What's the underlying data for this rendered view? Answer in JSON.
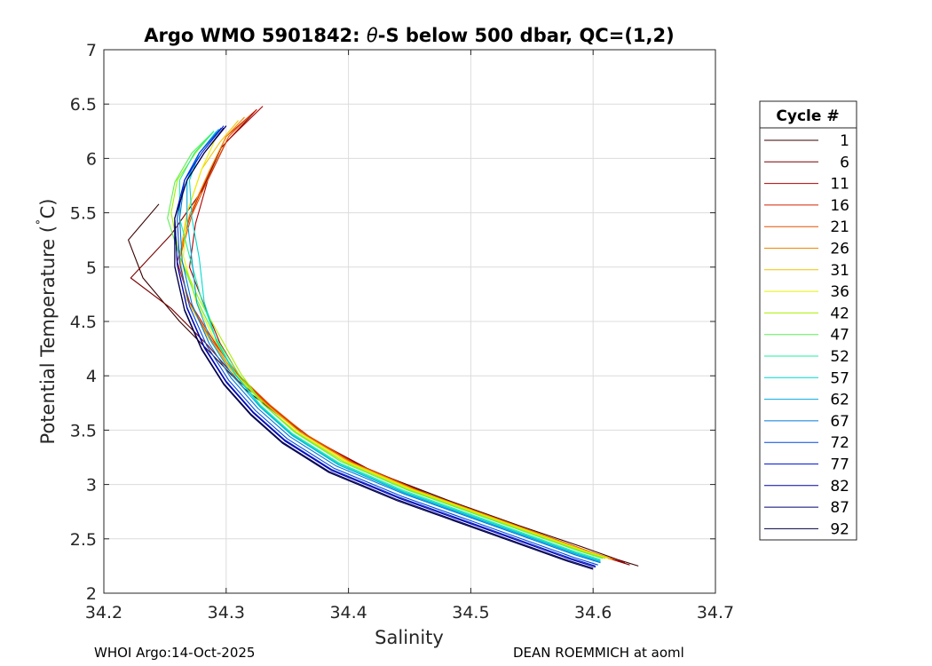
{
  "chart_data": {
    "type": "line",
    "title_prefix": "Argo WMO 5901842: ",
    "title_theta": "θ",
    "title_suffix": "-S below 500 dbar,  QC=(1,2)",
    "xlabel": "Salinity",
    "ylabel_prefix": "Potential Temperature (",
    "ylabel_degree": "˚",
    "ylabel_suffix": "C)",
    "xlim": [
      34.2,
      34.7
    ],
    "ylim": [
      2,
      7
    ],
    "xticks": [
      "34.2",
      "34.3",
      "34.4",
      "34.5",
      "34.6",
      "34.7"
    ],
    "yticks": [
      "2",
      "2.5",
      "3",
      "3.5",
      "4",
      "4.5",
      "5",
      "5.5",
      "6",
      "6.5",
      "7"
    ],
    "grid": true,
    "legend": {
      "title": "Cycle #",
      "placement": "right-outside",
      "entries": [
        {
          "label": "1",
          "color": "#3a0000"
        },
        {
          "label": "6",
          "color": "#7a0000"
        },
        {
          "label": "11",
          "color": "#b00000"
        },
        {
          "label": "16",
          "color": "#d42000"
        },
        {
          "label": "21",
          "color": "#e65000"
        },
        {
          "label": "26",
          "color": "#f08800"
        },
        {
          "label": "31",
          "color": "#f2c400"
        },
        {
          "label": "36",
          "color": "#eaf000"
        },
        {
          "label": "42",
          "color": "#a8f000"
        },
        {
          "label": "47",
          "color": "#5cf050"
        },
        {
          "label": "52",
          "color": "#1ef0a0"
        },
        {
          "label": "57",
          "color": "#00d8d0"
        },
        {
          "label": "62",
          "color": "#00a8e0"
        },
        {
          "label": "67",
          "color": "#0078d8"
        },
        {
          "label": "72",
          "color": "#0048e0"
        },
        {
          "label": "77",
          "color": "#0018d8"
        },
        {
          "label": "82",
          "color": "#0000a8"
        },
        {
          "label": "87",
          "color": "#000070"
        },
        {
          "label": "92",
          "color": "#000040"
        }
      ]
    },
    "profiles": [
      {
        "cycle": 1,
        "color": "#3a0000",
        "s": [
          34.637,
          34.62,
          34.59,
          34.54,
          34.48,
          34.42,
          34.375,
          34.345,
          34.315,
          34.29,
          34.262,
          34.232,
          34.22,
          34.245
        ],
        "t": [
          2.25,
          2.31,
          2.43,
          2.62,
          2.86,
          3.12,
          3.38,
          3.62,
          3.88,
          4.18,
          4.5,
          4.9,
          5.25,
          5.58
        ]
      },
      {
        "cycle": 6,
        "color": "#7a0000",
        "s": [
          34.63,
          34.61,
          34.58,
          34.53,
          34.47,
          34.415,
          34.37,
          34.34,
          34.31,
          34.285,
          34.255,
          34.222,
          34.255,
          34.28,
          34.296,
          34.325
        ],
        "t": [
          2.26,
          2.33,
          2.45,
          2.65,
          2.89,
          3.15,
          3.42,
          3.68,
          3.95,
          4.28,
          4.62,
          4.9,
          5.3,
          5.7,
          6.1,
          6.45
        ]
      },
      {
        "cycle": 11,
        "color": "#b00000",
        "s": [
          34.626,
          34.605,
          34.575,
          34.525,
          34.465,
          34.41,
          34.368,
          34.338,
          34.312,
          34.295,
          34.282,
          34.27,
          34.275,
          34.285,
          34.3,
          34.33
        ],
        "t": [
          2.28,
          2.35,
          2.47,
          2.67,
          2.91,
          3.17,
          3.44,
          3.7,
          3.98,
          4.3,
          4.65,
          5.0,
          5.4,
          5.8,
          6.15,
          6.48
        ]
      },
      {
        "cycle": 16,
        "color": "#d42000",
        "s": [
          34.62,
          34.6,
          34.57,
          34.52,
          34.46,
          34.405,
          34.365,
          34.336,
          34.31,
          34.29,
          34.27,
          34.26,
          34.27,
          34.285,
          34.3,
          34.325
        ],
        "t": [
          2.3,
          2.37,
          2.49,
          2.69,
          2.93,
          3.19,
          3.46,
          3.72,
          4.0,
          4.32,
          4.68,
          5.05,
          5.45,
          5.85,
          6.2,
          6.45
        ]
      },
      {
        "cycle": 21,
        "color": "#e65000",
        "s": [
          34.618,
          34.598,
          34.568,
          34.518,
          34.458,
          34.404,
          34.364,
          34.336,
          34.31,
          34.288,
          34.268,
          34.262,
          34.272,
          34.288,
          34.302,
          34.32
        ],
        "t": [
          2.31,
          2.38,
          2.5,
          2.7,
          2.94,
          3.2,
          3.47,
          3.73,
          4.01,
          4.33,
          4.7,
          5.08,
          5.48,
          5.88,
          6.2,
          6.4
        ]
      },
      {
        "cycle": 26,
        "color": "#f08800",
        "s": [
          34.616,
          34.596,
          34.566,
          34.516,
          34.456,
          34.402,
          34.362,
          34.334,
          34.308,
          34.287,
          34.268,
          34.262,
          34.27,
          34.286,
          34.3,
          34.315
        ],
        "t": [
          2.31,
          2.38,
          2.5,
          2.7,
          2.94,
          3.2,
          3.47,
          3.73,
          4.01,
          4.33,
          4.7,
          5.08,
          5.48,
          5.88,
          6.2,
          6.38
        ]
      },
      {
        "cycle": 31,
        "color": "#f2c400",
        "s": [
          34.614,
          34.594,
          34.564,
          34.514,
          34.454,
          34.4,
          34.36,
          34.332,
          34.306,
          34.286,
          34.268,
          34.262,
          34.268,
          34.28,
          34.295,
          34.31
        ],
        "t": [
          2.32,
          2.39,
          2.51,
          2.71,
          2.95,
          3.21,
          3.48,
          3.74,
          4.02,
          4.34,
          4.7,
          5.1,
          5.5,
          5.9,
          6.15,
          6.35
        ]
      },
      {
        "cycle": 36,
        "color": "#eaf000",
        "s": [
          34.612,
          34.592,
          34.562,
          34.512,
          34.452,
          34.398,
          34.358,
          34.33,
          34.308,
          34.29,
          34.275,
          34.265,
          34.268,
          34.28,
          34.292
        ],
        "t": [
          2.32,
          2.39,
          2.51,
          2.71,
          2.95,
          3.21,
          3.48,
          3.74,
          4.02,
          4.34,
          4.7,
          5.1,
          5.5,
          5.9,
          6.2
        ]
      },
      {
        "cycle": 42,
        "color": "#a8f000",
        "s": [
          34.61,
          34.59,
          34.56,
          34.51,
          34.45,
          34.396,
          34.357,
          34.33,
          34.312,
          34.296,
          34.278,
          34.262,
          34.255,
          34.26,
          34.275,
          34.29
        ],
        "t": [
          2.32,
          2.39,
          2.51,
          2.71,
          2.95,
          3.21,
          3.48,
          3.74,
          4.02,
          4.34,
          4.7,
          5.1,
          5.5,
          5.8,
          6.05,
          6.25
        ]
      },
      {
        "cycle": 47,
        "color": "#5cf050",
        "s": [
          34.608,
          34.588,
          34.558,
          34.508,
          34.448,
          34.394,
          34.356,
          34.33,
          34.31,
          34.292,
          34.276,
          34.262,
          34.252,
          34.258,
          34.272,
          34.29
        ],
        "t": [
          2.32,
          2.39,
          2.51,
          2.71,
          2.95,
          3.21,
          3.48,
          3.74,
          4.02,
          4.34,
          4.7,
          5.1,
          5.45,
          5.78,
          6.05,
          6.25
        ]
      },
      {
        "cycle": 52,
        "color": "#1ef0a0",
        "s": [
          34.606,
          34.586,
          34.556,
          34.506,
          34.446,
          34.392,
          34.354,
          34.328,
          34.308,
          34.292,
          34.28,
          34.27,
          34.262,
          34.262,
          34.274,
          34.29
        ],
        "t": [
          2.31,
          2.38,
          2.5,
          2.7,
          2.94,
          3.2,
          3.47,
          3.73,
          4.01,
          4.33,
          4.7,
          5.1,
          5.45,
          5.8,
          6.05,
          6.25
        ]
      },
      {
        "cycle": 57,
        "color": "#00d8d0",
        "s": [
          34.606,
          34.586,
          34.556,
          34.506,
          34.446,
          34.392,
          34.354,
          34.328,
          34.308,
          34.292,
          34.282,
          34.278,
          34.272,
          34.27,
          34.278,
          34.292
        ],
        "t": [
          2.3,
          2.37,
          2.49,
          2.69,
          2.93,
          3.19,
          3.46,
          3.72,
          4.0,
          4.32,
          4.68,
          5.08,
          5.45,
          5.8,
          6.05,
          6.25
        ]
      },
      {
        "cycle": 62,
        "color": "#00a8e0",
        "s": [
          34.606,
          34.586,
          34.556,
          34.506,
          34.446,
          34.392,
          34.354,
          34.328,
          34.306,
          34.288,
          34.276,
          34.272,
          34.268,
          34.268,
          34.278,
          34.294
        ],
        "t": [
          2.29,
          2.36,
          2.48,
          2.68,
          2.92,
          3.18,
          3.45,
          3.71,
          3.99,
          4.31,
          4.67,
          5.07,
          5.45,
          5.8,
          6.05,
          6.27
        ]
      },
      {
        "cycle": 67,
        "color": "#0078d8",
        "s": [
          34.606,
          34.586,
          34.556,
          34.506,
          34.446,
          34.39,
          34.352,
          34.326,
          34.304,
          34.286,
          34.272,
          34.264,
          34.262,
          34.266,
          34.278,
          34.296
        ],
        "t": [
          2.28,
          2.35,
          2.47,
          2.67,
          2.91,
          3.17,
          3.44,
          3.7,
          3.98,
          4.3,
          4.66,
          5.06,
          5.45,
          5.8,
          6.05,
          6.28
        ]
      },
      {
        "cycle": 72,
        "color": "#0048e0",
        "s": [
          34.604,
          34.584,
          34.554,
          34.504,
          34.444,
          34.388,
          34.35,
          34.324,
          34.302,
          34.284,
          34.27,
          34.262,
          34.26,
          34.266,
          34.278,
          34.296
        ],
        "t": [
          2.26,
          2.33,
          2.45,
          2.65,
          2.89,
          3.15,
          3.42,
          3.68,
          3.96,
          4.28,
          4.64,
          5.04,
          5.45,
          5.8,
          6.05,
          6.28
        ]
      },
      {
        "cycle": 77,
        "color": "#0018d8",
        "s": [
          34.602,
          34.582,
          34.552,
          34.502,
          34.442,
          34.386,
          34.348,
          34.322,
          34.3,
          34.282,
          34.268,
          34.26,
          34.258,
          34.266,
          34.28,
          34.298
        ],
        "t": [
          2.25,
          2.32,
          2.44,
          2.64,
          2.88,
          3.14,
          3.41,
          3.67,
          3.95,
          4.27,
          4.63,
          5.03,
          5.45,
          5.8,
          6.05,
          6.3
        ]
      },
      {
        "cycle": 82,
        "color": "#0000a8",
        "s": [
          34.602,
          34.582,
          34.552,
          34.502,
          34.442,
          34.386,
          34.348,
          34.322,
          34.3,
          34.282,
          34.268,
          34.26,
          34.258,
          34.268,
          34.282,
          34.3
        ],
        "t": [
          2.24,
          2.31,
          2.43,
          2.63,
          2.87,
          3.13,
          3.4,
          3.66,
          3.94,
          4.26,
          4.62,
          5.02,
          5.45,
          5.8,
          6.05,
          6.3
        ]
      },
      {
        "cycle": 87,
        "color": "#000070",
        "s": [
          34.6,
          34.58,
          34.55,
          34.5,
          34.44,
          34.384,
          34.346,
          34.32,
          34.298,
          34.28,
          34.266,
          34.258,
          34.258,
          34.268,
          34.282,
          34.3
        ],
        "t": [
          2.23,
          2.3,
          2.42,
          2.62,
          2.86,
          3.12,
          3.39,
          3.65,
          3.93,
          4.25,
          4.61,
          5.01,
          5.45,
          5.8,
          6.05,
          6.3
        ]
      },
      {
        "cycle": 92,
        "color": "#000040",
        "s": [
          34.6,
          34.58,
          34.55,
          34.5,
          34.44,
          34.384,
          34.346,
          34.32,
          34.298,
          34.28,
          34.266,
          34.258,
          34.258,
          34.268,
          34.282,
          34.298
        ],
        "t": [
          2.22,
          2.29,
          2.41,
          2.61,
          2.85,
          3.11,
          3.38,
          3.64,
          3.92,
          4.24,
          4.6,
          5.0,
          5.45,
          5.8,
          6.05,
          6.28
        ]
      }
    ]
  },
  "footer": {
    "left": "WHOI Argo:14-Oct-2025",
    "right": "DEAN ROEMMICH at aoml"
  }
}
